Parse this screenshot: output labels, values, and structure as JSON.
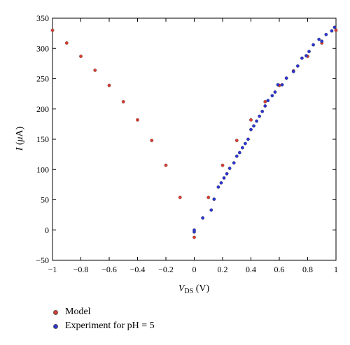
{
  "chart_data": {
    "type": "scatter",
    "title": "",
    "xlabel": {
      "main": "V",
      "sub": "DS",
      "unit": " (V)"
    },
    "ylabel": {
      "main": "I",
      "unit_open": " (",
      "unit_greek": "μ",
      "unit_close": "A)"
    },
    "xlim": [
      -1,
      1
    ],
    "ylim": [
      -50,
      350
    ],
    "xticks": [
      -1,
      -0.8,
      -0.6,
      -0.4,
      -0.2,
      0,
      0.2,
      0.4,
      0.6,
      0.8,
      1
    ],
    "xtick_labels": [
      "−1",
      "−0.8",
      "−0.6",
      "−0.4",
      "−0.2",
      "0",
      "0.2",
      "0.4",
      "0.6",
      "0.8",
      "1"
    ],
    "yticks": [
      -50,
      0,
      50,
      100,
      150,
      200,
      250,
      300,
      350
    ],
    "ytick_labels": [
      "−50",
      "0",
      "50",
      "100",
      "150",
      "200",
      "250",
      "300",
      "350"
    ],
    "grid": false,
    "legend_position": "bottom-left, below plot",
    "series": [
      {
        "name": "Model",
        "color": "#e03a2f",
        "x": [
          -1.0,
          -0.9,
          -0.8,
          -0.7,
          -0.6,
          -0.5,
          -0.4,
          -0.3,
          -0.2,
          -0.1,
          0.0,
          0.1,
          0.2,
          0.3,
          0.4,
          0.5,
          0.6,
          0.7,
          0.8,
          0.9,
          1.0
        ],
        "y": [
          330,
          309,
          287,
          264,
          239,
          212,
          182,
          148,
          107,
          54,
          -12,
          54,
          107,
          148,
          182,
          212,
          239,
          263,
          287,
          309,
          330
        ]
      },
      {
        "name": "Experiment for pH = 5",
        "color": "#2a34d6",
        "x": [
          0.0,
          0.0,
          0.06,
          0.12,
          0.14,
          0.17,
          0.19,
          0.21,
          0.23,
          0.25,
          0.28,
          0.3,
          0.32,
          0.34,
          0.36,
          0.38,
          0.4,
          0.42,
          0.44,
          0.46,
          0.48,
          0.5,
          0.52,
          0.55,
          0.57,
          0.59,
          0.62,
          0.65,
          0.7,
          0.73,
          0.76,
          0.79,
          0.81,
          0.84,
          0.88,
          0.9,
          0.93,
          0.97,
          0.99
        ],
        "y": [
          -3,
          0,
          20,
          33,
          51,
          71,
          78,
          86,
          93,
          102,
          111,
          122,
          128,
          136,
          143,
          150,
          166,
          172,
          180,
          188,
          196,
          205,
          214,
          222,
          228,
          240,
          240,
          251,
          262,
          271,
          284,
          288,
          295,
          306,
          315,
          312,
          323,
          329,
          335
        ]
      }
    ]
  }
}
